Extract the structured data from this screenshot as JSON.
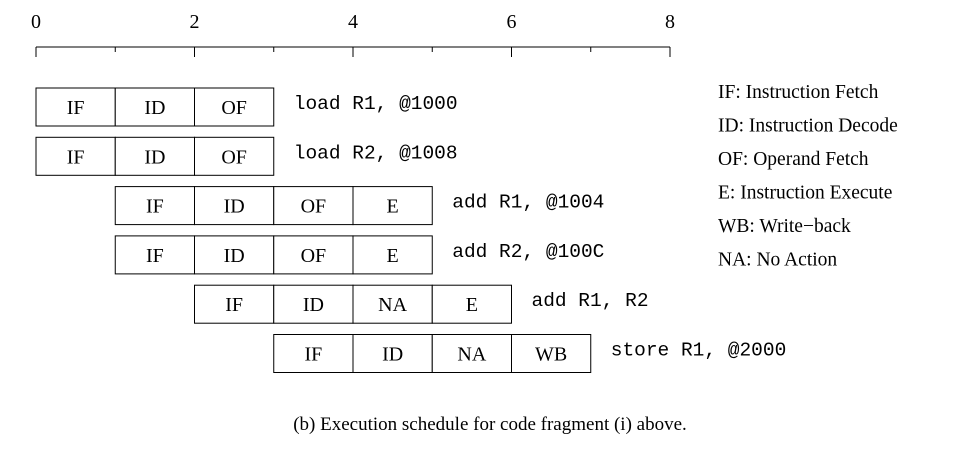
{
  "timeline": {
    "ticks": [
      "0",
      "2",
      "4",
      "6",
      "8"
    ],
    "minor_ticks": [
      1,
      3,
      5,
      7
    ]
  },
  "rows": [
    {
      "start": 0,
      "stages": [
        "IF",
        "ID",
        "OF"
      ],
      "instruction": "load R1, @1000"
    },
    {
      "start": 0,
      "stages": [
        "IF",
        "ID",
        "OF"
      ],
      "instruction": "load R2, @1008"
    },
    {
      "start": 1,
      "stages": [
        "IF",
        "ID",
        "OF",
        "E"
      ],
      "instruction": "add R1, @1004"
    },
    {
      "start": 1,
      "stages": [
        "IF",
        "ID",
        "OF",
        "E"
      ],
      "instruction": "add R2, @100C"
    },
    {
      "start": 2,
      "stages": [
        "IF",
        "ID",
        "NA",
        "E"
      ],
      "instruction": "add R1, R2"
    },
    {
      "start": 3,
      "stages": [
        "IF",
        "ID",
        "NA",
        "WB"
      ],
      "instruction": "store R1, @2000"
    }
  ],
  "legend": [
    "IF: Instruction Fetch",
    "ID: Instruction Decode",
    "OF: Operand Fetch",
    "E: Instruction Execute",
    "WB: Write−back",
    "NA: No Action"
  ],
  "caption": "(b) Execution schedule for code fragment (i) above."
}
